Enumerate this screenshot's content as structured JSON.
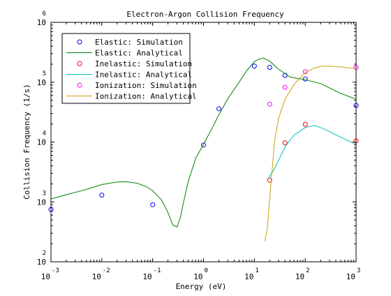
{
  "chart_data": {
    "type": "line",
    "title": "Electron-Argon Collision Frequency",
    "xlabel": "Energy (eV)",
    "ylabel": "Collision Frequency (1/s)",
    "xscale": "log",
    "yscale": "log",
    "xlim": [
      0.001,
      1000
    ],
    "ylim": [
      100,
      1000000
    ],
    "x_ticks": [
      {
        "value": 0.001,
        "base": "10",
        "exp": "-3"
      },
      {
        "value": 0.01,
        "base": "10",
        "exp": "-2"
      },
      {
        "value": 0.1,
        "base": "10",
        "exp": "-1"
      },
      {
        "value": 1,
        "base": "10",
        "exp": "0"
      },
      {
        "value": 10,
        "base": "10",
        "exp": "1"
      },
      {
        "value": 100,
        "base": "10",
        "exp": "2"
      },
      {
        "value": 1000,
        "base": "10",
        "exp": "3"
      }
    ],
    "y_ticks": [
      {
        "value": 100,
        "base": "10",
        "exp": "2"
      },
      {
        "value": 1000,
        "base": "10",
        "exp": "3"
      },
      {
        "value": 10000,
        "base": "10",
        "exp": "4"
      },
      {
        "value": 100000,
        "base": "10",
        "exp": "5"
      },
      {
        "value": 1000000,
        "base": "10",
        "exp": "6"
      }
    ],
    "grid": false,
    "legend_position": "top-left",
    "series": [
      {
        "name": "Elastic: Simulation",
        "kind": "markers",
        "color": "#0000ff",
        "x": [
          0.001,
          0.01,
          0.1,
          1,
          2,
          10,
          20,
          40,
          100,
          1000
        ],
        "y": [
          750,
          1300,
          900,
          8900,
          36000,
          186000,
          177000,
          130000,
          113000,
          41000
        ]
      },
      {
        "name": "Elastic: Analytical",
        "kind": "line",
        "color": "#008000",
        "x": [
          0.001,
          0.002,
          0.005,
          0.01,
          0.02,
          0.03,
          0.05,
          0.08,
          0.1,
          0.15,
          0.2,
          0.25,
          0.3,
          0.35,
          0.4,
          0.5,
          0.7,
          1,
          1.5,
          2,
          3,
          5,
          7,
          10,
          12,
          15,
          20,
          30,
          50,
          100,
          200,
          500,
          1000
        ],
        "y": [
          1120,
          1320,
          1620,
          1950,
          2150,
          2180,
          2050,
          1750,
          1530,
          1080,
          660,
          410,
          380,
          550,
          950,
          2200,
          5300,
          9200,
          17500,
          28500,
          53000,
          100000,
          155000,
          220000,
          240000,
          255000,
          225000,
          165000,
          122000,
          110000,
          95000,
          65000,
          52000
        ]
      },
      {
        "name": "Inelastic: Simulation",
        "kind": "markers",
        "color": "#ff0000",
        "x": [
          20,
          40,
          100,
          1000
        ],
        "y": [
          2300,
          9700,
          19800,
          10500
        ]
      },
      {
        "name": "Inelastic: Analytical",
        "kind": "line",
        "color": "#00bfbf",
        "x": [
          18,
          20,
          25,
          30,
          40,
          60,
          100,
          150,
          200,
          300,
          500,
          1000
        ],
        "y": [
          2350,
          2700,
          3600,
          5000,
          8300,
          13000,
          17500,
          19000,
          17500,
          15000,
          12000,
          9200
        ]
      },
      {
        "name": "Ionization: Simulation",
        "kind": "markers",
        "color": "#ff00ff",
        "x": [
          20,
          40,
          100,
          1000
        ],
        "y": [
          43000,
          82000,
          150000,
          177000
        ]
      },
      {
        "name": "Ionization: Analytical",
        "kind": "line",
        "color": "#c8a000",
        "x": [
          16,
          18,
          20,
          25,
          30,
          40,
          60,
          100,
          150,
          200,
          300,
          500,
          1000
        ],
        "y": [
          220,
          360,
          1150,
          10500,
          25000,
          52000,
          92000,
          145000,
          172000,
          184000,
          185000,
          180000,
          168000
        ]
      }
    ]
  }
}
